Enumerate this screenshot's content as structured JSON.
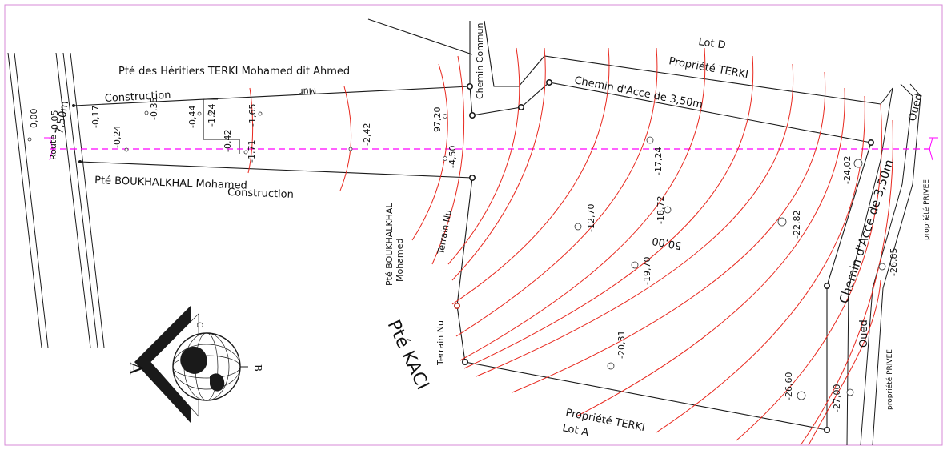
{
  "colors": {
    "frame": "#d78ad7",
    "axis": "#ff00ff",
    "contour": "#e8281e",
    "line": "#1a1a1a"
  },
  "labels": {
    "heritiers": "Pté des Héritiers TERKI Mohamed dit Ahmed",
    "construction_top": "Construction",
    "mur": "Mur",
    "boukhalkhal": "Pté BOUKHALKHAL Mohamed",
    "construction_bottom": "Construction",
    "route": "Route",
    "width_road": "7,50m",
    "chemin_commun": "Chemin Commun",
    "lot_d": "Lot D",
    "propriete_terki_top": "Propriété TERKI",
    "chemin_acces_top": "Chemin d'Acce de 3,50m",
    "oued_top": "Oued",
    "terrain_nu_1": "Terrain Nu",
    "terrain_nu_2": "Terrain Nu",
    "pte_bouk_line1": "Pté BOUKHALKHAL",
    "pte_bouk_line2": "Mohamed",
    "pte_kaci": "Pté KACI",
    "chemin_acces_right": "Chemin d'Acce de 3,50m",
    "oued_right": "Oued",
    "propriete_privee_1": "propriété PRIVEE",
    "propriete_privee_2": "propriété PRIVEE",
    "propriete_terki_bottom": "Propriété TERKI",
    "lot_a": "Lot A",
    "dim_50": "50,00"
  },
  "elevations": [
    "0,00",
    "-0,05",
    "-0,17",
    "-0,24",
    "-0,35",
    "-0,44",
    "-1,24",
    "-0,42",
    "-1,71",
    "-1,65",
    "-2,42",
    "97,20",
    "-4,50",
    "-12,70",
    "-17,24",
    "-18,72",
    "-19,70",
    "-20,31",
    "-22,82",
    "-24,02",
    "-26,60",
    "-26,85",
    "-27,00"
  ],
  "compass": {
    "glyph_a": "A",
    "glyph_b": "B",
    "glyph_c": "C"
  }
}
